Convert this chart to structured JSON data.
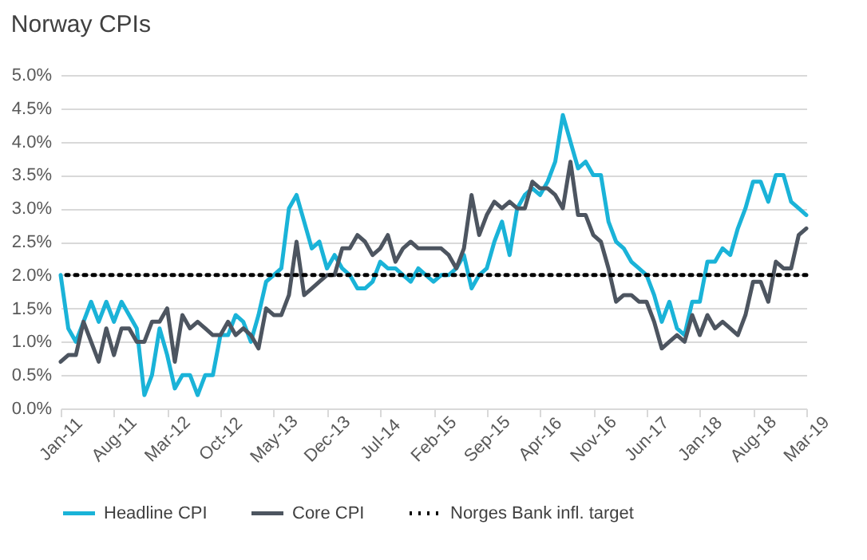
{
  "chart_data": {
    "type": "line",
    "title": "Norway CPIs",
    "categories": [
      "Jan-11",
      null,
      null,
      null,
      null,
      null,
      null,
      "Aug-11",
      null,
      null,
      null,
      null,
      null,
      null,
      "Mar-12",
      null,
      null,
      null,
      null,
      null,
      null,
      "Oct-12",
      null,
      null,
      null,
      null,
      null,
      null,
      "May-13",
      null,
      null,
      null,
      null,
      null,
      null,
      "Dec-13",
      null,
      null,
      null,
      null,
      null,
      null,
      "Jul-14",
      null,
      null,
      null,
      null,
      null,
      null,
      "Feb-15",
      null,
      null,
      null,
      null,
      null,
      null,
      "Sep-15",
      null,
      null,
      null,
      null,
      null,
      null,
      "Apr-16",
      null,
      null,
      null,
      null,
      null,
      null,
      "Nov-16",
      null,
      null,
      null,
      null,
      null,
      null,
      "Jun-17",
      null,
      null,
      null,
      null,
      null,
      null,
      "Jan-18",
      null,
      null,
      null,
      null,
      null,
      null,
      "Aug-18",
      null,
      null,
      null,
      null,
      null,
      null,
      "Mar-19"
    ],
    "series": [
      {
        "name": "Headline CPI",
        "color": "#1ab3d8",
        "values": [
          2.0,
          1.2,
          1.0,
          1.3,
          1.6,
          1.3,
          1.6,
          1.3,
          1.6,
          1.4,
          1.2,
          0.2,
          0.5,
          1.2,
          0.8,
          0.3,
          0.5,
          0.5,
          0.2,
          0.5,
          0.5,
          1.1,
          1.1,
          1.4,
          1.3,
          1.0,
          1.4,
          1.9,
          2.0,
          2.1,
          3.0,
          3.2,
          2.8,
          2.4,
          2.5,
          2.1,
          2.3,
          2.1,
          2.0,
          1.8,
          1.8,
          1.9,
          2.2,
          2.1,
          2.1,
          2.0,
          1.9,
          2.1,
          2.0,
          1.9,
          2.0,
          2.0,
          2.1,
          2.3,
          1.8,
          2.0,
          2.1,
          2.5,
          2.8,
          2.3,
          3.0,
          3.2,
          3.3,
          3.2,
          3.4,
          3.7,
          4.4,
          4.0,
          3.6,
          3.7,
          3.5,
          3.5,
          2.8,
          2.5,
          2.4,
          2.2,
          2.1,
          2.0,
          1.7,
          1.3,
          1.6,
          1.2,
          1.1,
          1.6,
          1.6,
          2.2,
          2.2,
          2.4,
          2.3,
          2.7,
          3.0,
          3.4,
          3.4,
          3.1,
          3.5,
          3.5,
          3.1,
          3.0,
          2.9
        ]
      },
      {
        "name": "Core CPI",
        "color": "#4d5560",
        "values": [
          0.7,
          0.8,
          0.8,
          1.3,
          1.0,
          0.7,
          1.2,
          0.8,
          1.2,
          1.2,
          1.0,
          1.0,
          1.3,
          1.3,
          1.5,
          0.7,
          1.4,
          1.2,
          1.3,
          1.2,
          1.1,
          1.1,
          1.3,
          1.1,
          1.2,
          1.1,
          0.9,
          1.5,
          1.4,
          1.4,
          1.7,
          2.5,
          1.7,
          1.8,
          1.9,
          2.0,
          2.0,
          2.4,
          2.4,
          2.6,
          2.5,
          2.3,
          2.4,
          2.6,
          2.2,
          2.4,
          2.5,
          2.4,
          2.4,
          2.4,
          2.4,
          2.3,
          2.1,
          2.4,
          3.2,
          2.6,
          2.9,
          3.1,
          3.0,
          3.1,
          3.0,
          3.0,
          3.4,
          3.3,
          3.3,
          3.2,
          3.0,
          3.7,
          2.9,
          2.9,
          2.6,
          2.5,
          2.1,
          1.6,
          1.7,
          1.7,
          1.6,
          1.6,
          1.3,
          0.9,
          1.0,
          1.1,
          1.0,
          1.4,
          1.1,
          1.4,
          1.2,
          1.3,
          1.2,
          1.1,
          1.4,
          1.9,
          1.9,
          1.6,
          2.2,
          2.1,
          2.1,
          2.6,
          2.7
        ]
      }
    ],
    "ref_lines": [
      {
        "axis": "y",
        "value": 2.0,
        "label": "Norges Bank infl. target",
        "color": "#000000",
        "line_style": "dotted"
      }
    ],
    "ylim": [
      0,
      5
    ],
    "yticks": [
      {
        "value": 0,
        "label": "0.0%"
      },
      {
        "value": 0.5,
        "label": "0.5%"
      },
      {
        "value": 1,
        "label": "1.0%"
      },
      {
        "value": 1.5,
        "label": "1.5%"
      },
      {
        "value": 2,
        "label": "2.0%"
      },
      {
        "value": 2.5,
        "label": "2.5%"
      },
      {
        "value": 3,
        "label": "3.0%"
      },
      {
        "value": 3.5,
        "label": "3.5%"
      },
      {
        "value": 4,
        "label": "4.0%"
      },
      {
        "value": 4.5,
        "label": "4.5%"
      },
      {
        "value": 5,
        "label": "5.0%"
      }
    ],
    "grid": "y",
    "legend": "bottom",
    "marker": "none",
    "line_style": "solid"
  }
}
